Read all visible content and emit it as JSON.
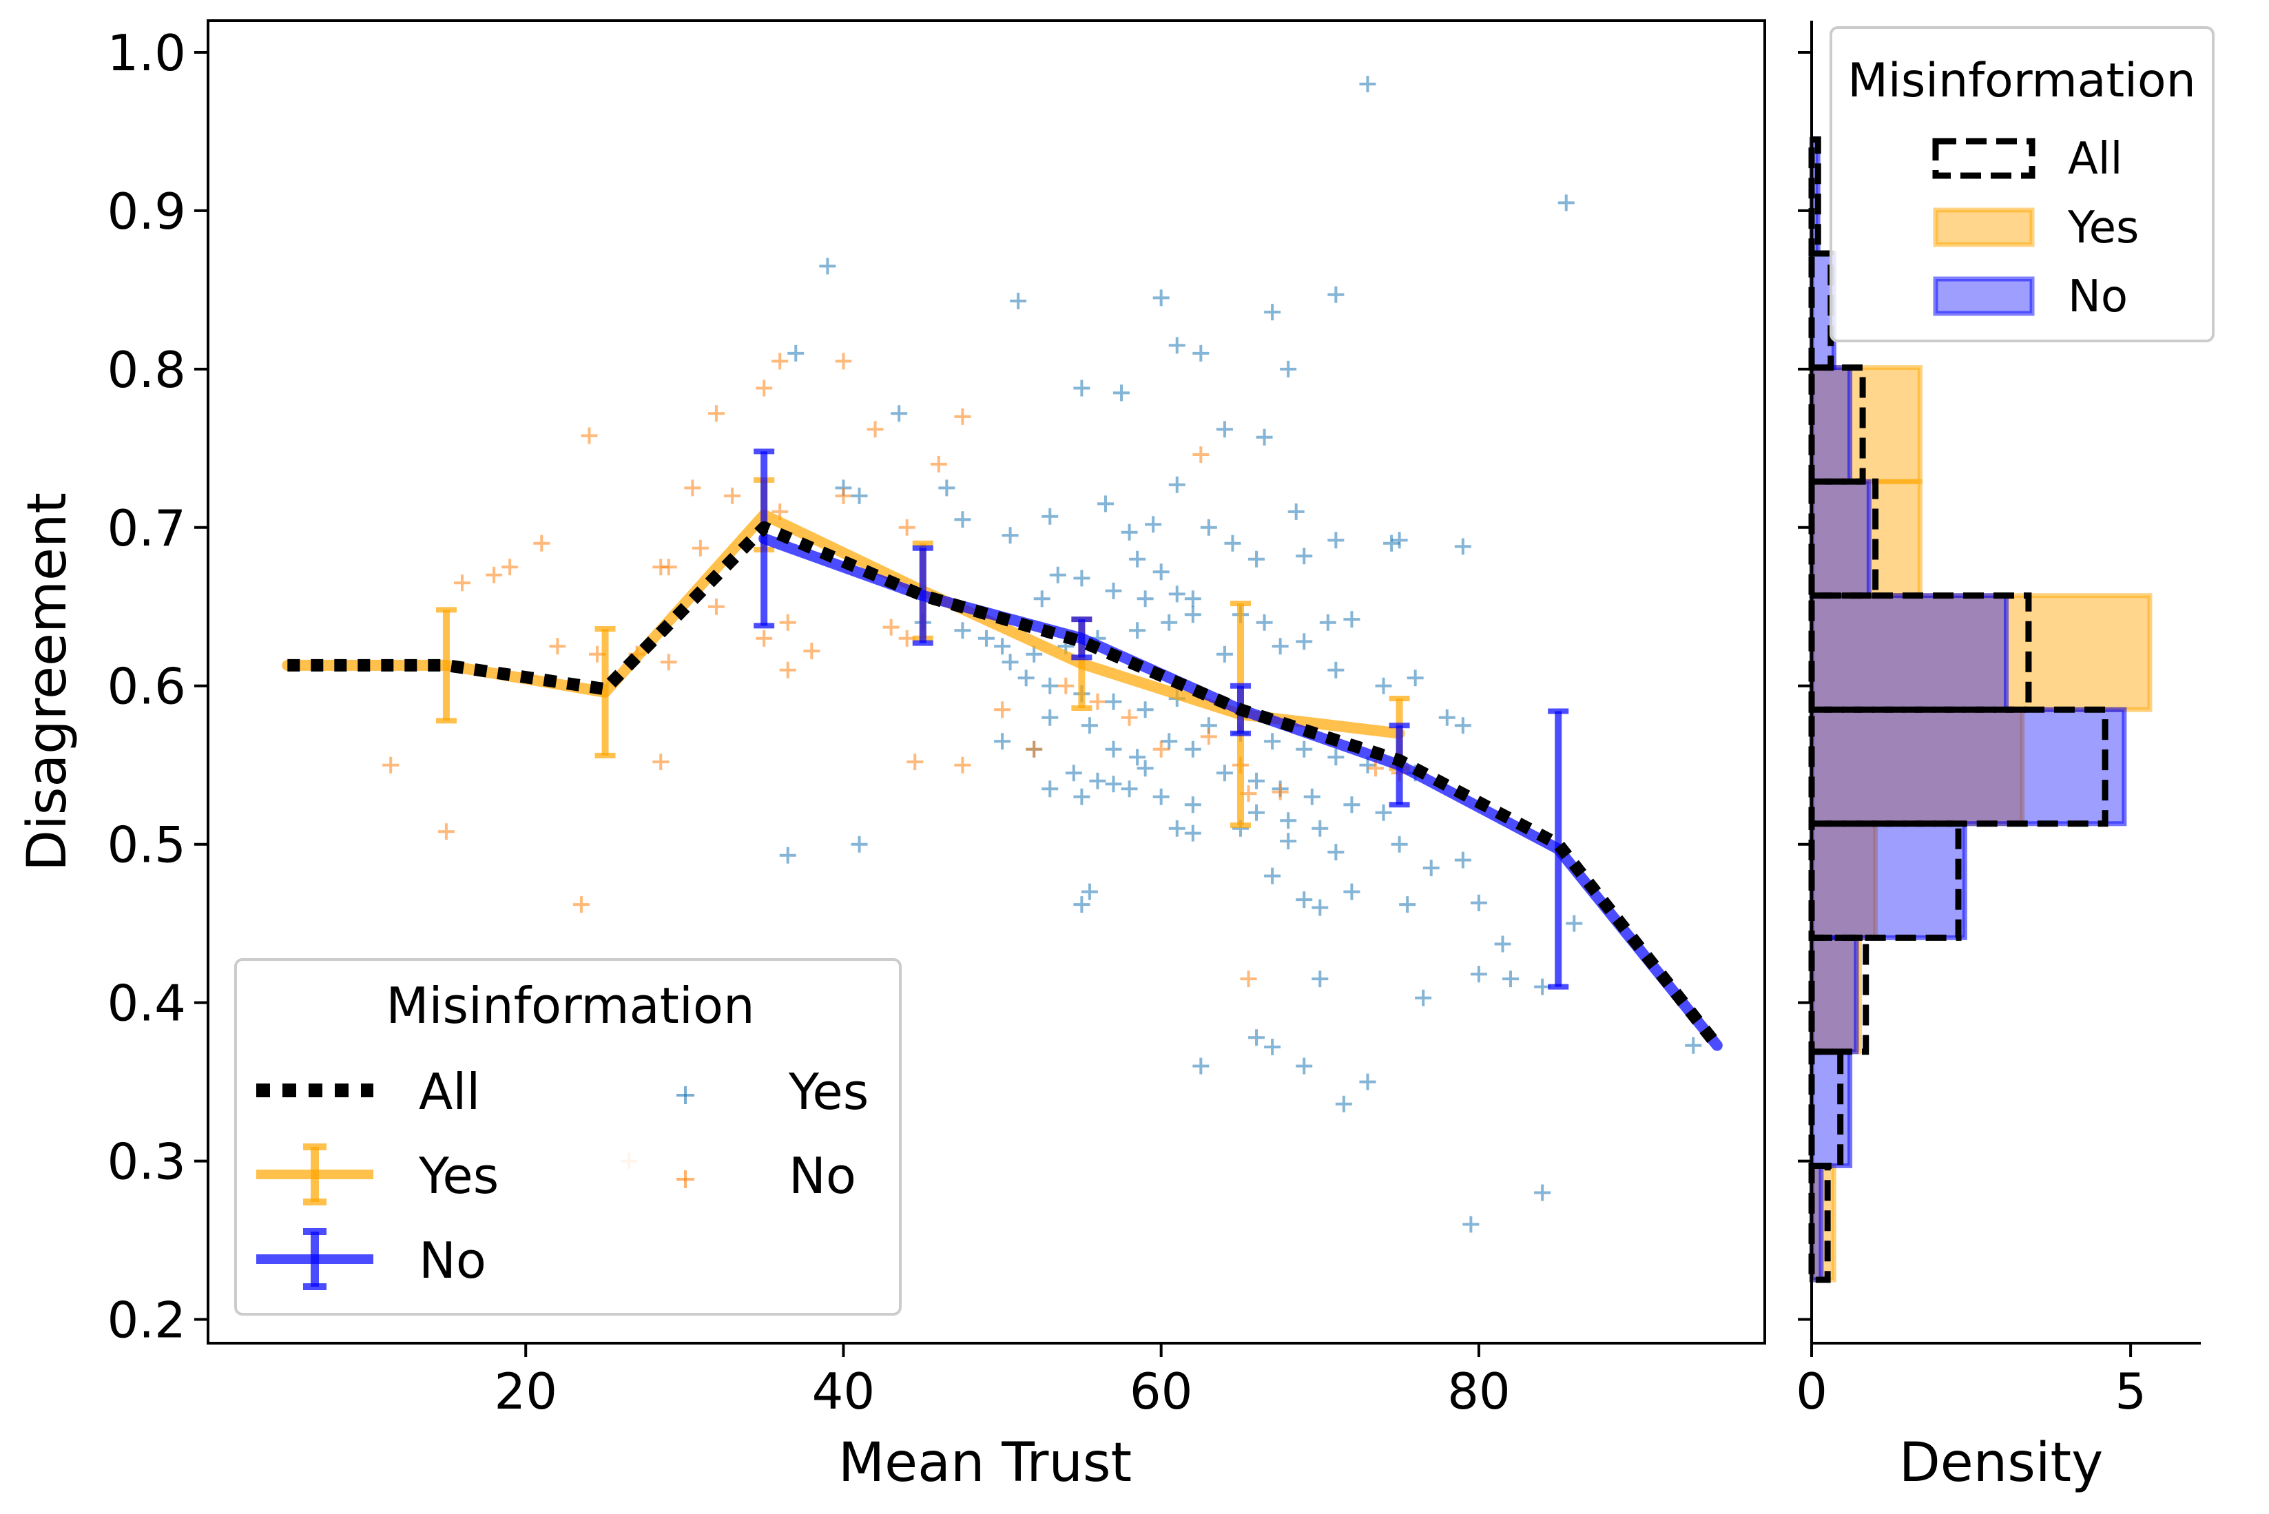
{
  "chart_data": [
    {
      "type": "line",
      "panel": "main",
      "xlabel": "Mean Trust",
      "ylabel": "Disagreement",
      "xlim": [
        0,
        98
      ],
      "ylim": [
        0.185,
        1.02
      ],
      "xticks": [
        20,
        40,
        60,
        80
      ],
      "yticks": [
        0.2,
        0.3,
        0.4,
        0.5,
        0.6,
        0.7,
        0.8,
        0.9,
        1.0
      ],
      "xtick_labels": [
        "20",
        "40",
        "60",
        "80"
      ],
      "ytick_labels": [
        "0.2",
        "0.3",
        "0.4",
        "0.5",
        "0.6",
        "0.7",
        "0.8",
        "0.9",
        "1.0"
      ],
      "colors": {
        "all": "#000000",
        "yes": "#ffa500",
        "no": "#0000ff",
        "scatter_yes": "#1f77b4",
        "scatter_no": "#ff7f0e"
      },
      "series": [
        {
          "name": "All",
          "style": "dotted",
          "x": [
            5,
            15,
            25,
            35,
            45,
            55,
            65,
            75,
            85,
            95
          ],
          "y": [
            0.613,
            0.613,
            0.598,
            0.7,
            0.657,
            0.628,
            0.585,
            0.553,
            0.5,
            0.373
          ]
        },
        {
          "name": "Yes",
          "style": "solid",
          "errorbars": true,
          "x": [
            5,
            15,
            25,
            35,
            45,
            55,
            65,
            75
          ],
          "y": [
            0.613,
            0.613,
            0.596,
            0.708,
            0.66,
            0.614,
            0.582,
            0.57
          ],
          "err": [
            0.0,
            0.035,
            0.04,
            0.022,
            0.03,
            0.028,
            0.07,
            0.022
          ]
        },
        {
          "name": "No",
          "style": "solid",
          "errorbars": true,
          "x": [
            35,
            45,
            55,
            65,
            75,
            85,
            95
          ],
          "y": [
            0.693,
            0.657,
            0.63,
            0.585,
            0.55,
            0.497,
            0.373
          ],
          "err": [
            0.055,
            0.03,
            0.012,
            0.015,
            0.025,
            0.087,
            0.0
          ]
        }
      ],
      "scatter": [
        {
          "name": "Yes",
          "marker": "+",
          "points": [
            [
              73,
              0.98
            ],
            [
              85.5,
              0.905
            ],
            [
              39,
              0.865
            ],
            [
              51,
              0.843
            ],
            [
              60,
              0.845
            ],
            [
              71,
              0.847
            ],
            [
              67,
              0.836
            ],
            [
              61,
              0.815
            ],
            [
              62.5,
              0.81
            ],
            [
              37,
              0.81
            ],
            [
              68,
              0.8
            ],
            [
              55,
              0.788
            ],
            [
              57.5,
              0.785
            ],
            [
              43.5,
              0.772
            ],
            [
              64,
              0.762
            ],
            [
              66.5,
              0.757
            ],
            [
              40,
              0.725
            ],
            [
              41,
              0.72
            ],
            [
              46.5,
              0.725
            ],
            [
              61,
              0.727
            ],
            [
              47.5,
              0.705
            ],
            [
              53,
              0.707
            ],
            [
              56.5,
              0.715
            ],
            [
              58,
              0.697
            ],
            [
              59.5,
              0.702
            ],
            [
              63,
              0.7
            ],
            [
              68.5,
              0.71
            ],
            [
              50.5,
              0.695
            ],
            [
              64.5,
              0.69
            ],
            [
              66,
              0.68
            ],
            [
              69,
              0.682
            ],
            [
              71,
              0.692
            ],
            [
              74.5,
              0.69
            ],
            [
              75,
              0.692
            ],
            [
              79,
              0.688
            ],
            [
              58.5,
              0.68
            ],
            [
              60,
              0.672
            ],
            [
              57,
              0.66
            ],
            [
              59,
              0.655
            ],
            [
              61,
              0.658
            ],
            [
              62,
              0.655
            ],
            [
              53.5,
              0.67
            ],
            [
              55,
              0.668
            ],
            [
              52.5,
              0.655
            ],
            [
              65,
              0.645
            ],
            [
              66.5,
              0.64
            ],
            [
              70.5,
              0.64
            ],
            [
              72,
              0.642
            ],
            [
              45,
              0.64
            ],
            [
              47.5,
              0.635
            ],
            [
              49,
              0.63
            ],
            [
              50,
              0.625
            ],
            [
              52,
              0.62
            ],
            [
              54,
              0.625
            ],
            [
              56,
              0.63
            ],
            [
              58.5,
              0.635
            ],
            [
              60.5,
              0.64
            ],
            [
              62,
              0.645
            ],
            [
              64,
              0.62
            ],
            [
              67.5,
              0.625
            ],
            [
              69,
              0.628
            ],
            [
              71,
              0.61
            ],
            [
              74,
              0.6
            ],
            [
              76,
              0.605
            ],
            [
              50.5,
              0.615
            ],
            [
              51.5,
              0.605
            ],
            [
              53,
              0.6
            ],
            [
              55,
              0.595
            ],
            [
              57,
              0.59
            ],
            [
              59,
              0.585
            ],
            [
              61,
              0.592
            ],
            [
              63,
              0.575
            ],
            [
              65,
              0.57
            ],
            [
              67,
              0.565
            ],
            [
              69,
              0.56
            ],
            [
              71,
              0.555
            ],
            [
              73,
              0.55
            ],
            [
              76,
              0.545
            ],
            [
              53,
              0.58
            ],
            [
              55.5,
              0.575
            ],
            [
              57,
              0.56
            ],
            [
              58.5,
              0.555
            ],
            [
              60.5,
              0.565
            ],
            [
              62,
              0.56
            ],
            [
              64,
              0.545
            ],
            [
              66,
              0.54
            ],
            [
              67.5,
              0.535
            ],
            [
              69.5,
              0.53
            ],
            [
              72,
              0.525
            ],
            [
              74,
              0.52
            ],
            [
              50,
              0.565
            ],
            [
              52,
              0.56
            ],
            [
              54.5,
              0.545
            ],
            [
              56,
              0.54
            ],
            [
              58,
              0.535
            ],
            [
              60,
              0.53
            ],
            [
              62,
              0.525
            ],
            [
              66,
              0.52
            ],
            [
              68,
              0.515
            ],
            [
              70,
              0.51
            ],
            [
              53,
              0.535
            ],
            [
              55,
              0.53
            ],
            [
              57,
              0.538
            ],
            [
              59,
              0.548
            ],
            [
              61,
              0.51
            ],
            [
              62,
              0.507
            ],
            [
              65,
              0.51
            ],
            [
              68,
              0.502
            ],
            [
              71,
              0.495
            ],
            [
              75,
              0.5
            ],
            [
              77,
              0.485
            ],
            [
              79,
              0.49
            ],
            [
              36.5,
              0.493
            ],
            [
              41,
              0.5
            ],
            [
              55.5,
              0.47
            ],
            [
              55,
              0.462
            ],
            [
              67,
              0.48
            ],
            [
              69,
              0.465
            ],
            [
              70,
              0.46
            ],
            [
              72,
              0.47
            ],
            [
              75.5,
              0.462
            ],
            [
              80,
              0.463
            ],
            [
              81.5,
              0.437
            ],
            [
              70,
              0.415
            ],
            [
              80,
              0.418
            ],
            [
              82,
              0.415
            ],
            [
              76.5,
              0.403
            ],
            [
              84,
              0.41
            ],
            [
              86,
              0.45
            ],
            [
              93.5,
              0.373
            ],
            [
              62.5,
              0.36
            ],
            [
              66,
              0.378
            ],
            [
              67,
              0.372
            ],
            [
              69,
              0.36
            ],
            [
              73,
              0.35
            ],
            [
              71.5,
              0.336
            ],
            [
              84,
              0.28
            ],
            [
              79.5,
              0.26
            ],
            [
              78,
              0.58
            ],
            [
              79,
              0.575
            ]
          ]
        },
        {
          "name": "No",
          "marker": "+",
          "points": [
            [
              36,
              0.805
            ],
            [
              35,
              0.788
            ],
            [
              40,
              0.805
            ],
            [
              47.5,
              0.77
            ],
            [
              32,
              0.772
            ],
            [
              24,
              0.758
            ],
            [
              42,
              0.762
            ],
            [
              46,
              0.74
            ],
            [
              62.5,
              0.746
            ],
            [
              30.5,
              0.725
            ],
            [
              33,
              0.72
            ],
            [
              36,
              0.71
            ],
            [
              40,
              0.72
            ],
            [
              44,
              0.7
            ],
            [
              21,
              0.69
            ],
            [
              19,
              0.675
            ],
            [
              18,
              0.67
            ],
            [
              16,
              0.665
            ],
            [
              29,
              0.675
            ],
            [
              28.5,
              0.675
            ],
            [
              31,
              0.687
            ],
            [
              32,
              0.65
            ],
            [
              35,
              0.63
            ],
            [
              36.5,
              0.61
            ],
            [
              43,
              0.637
            ],
            [
              44,
              0.63
            ],
            [
              29,
              0.615
            ],
            [
              27,
              0.62
            ],
            [
              22,
              0.625
            ],
            [
              24.5,
              0.62
            ],
            [
              38,
              0.622
            ],
            [
              36.5,
              0.64
            ],
            [
              50,
              0.585
            ],
            [
              52,
              0.56
            ],
            [
              44.5,
              0.552
            ],
            [
              47.5,
              0.55
            ],
            [
              11.5,
              0.55
            ],
            [
              28.5,
              0.552
            ],
            [
              15,
              0.508
            ],
            [
              23.5,
              0.462
            ],
            [
              65.5,
              0.532
            ],
            [
              67.5,
              0.533
            ],
            [
              65.5,
              0.415
            ],
            [
              63,
              0.568
            ],
            [
              65,
              0.55
            ],
            [
              73.5,
              0.548
            ],
            [
              75,
              0.545
            ],
            [
              26.5,
              0.3
            ],
            [
              60,
              0.56
            ],
            [
              54,
              0.6
            ],
            [
              56,
              0.59
            ],
            [
              58,
              0.58
            ]
          ]
        }
      ],
      "legend": {
        "title": "Misinformation",
        "position": "lower-left",
        "col1": [
          "All",
          "Yes",
          "No"
        ],
        "col2": [
          "Yes",
          "No"
        ]
      }
    },
    {
      "type": "histogram",
      "panel": "side",
      "orientation": "horizontal",
      "xlabel": "Density",
      "xlim": [
        0,
        6.1
      ],
      "xticks": [
        0,
        5
      ],
      "xtick_labels": [
        "0",
        "5"
      ],
      "bins": [
        0.225,
        0.297,
        0.369,
        0.441,
        0.513,
        0.585,
        0.657,
        0.729,
        0.801,
        0.873,
        0.945
      ],
      "series": [
        {
          "name": "All",
          "style": "dashed",
          "values": [
            0.25,
            0.45,
            0.85,
            2.3,
            4.6,
            3.4,
            1.0,
            0.8,
            0.3,
            0.1
          ]
        },
        {
          "name": "Yes",
          "color": "#ffa500",
          "values": [
            0.35,
            0.0,
            0.75,
            1.0,
            3.3,
            5.3,
            1.7,
            1.7,
            0.0,
            0.0
          ]
        },
        {
          "name": "No",
          "color": "#0000ff",
          "values": [
            0.15,
            0.6,
            0.7,
            2.4,
            4.9,
            3.05,
            0.9,
            0.6,
            0.35,
            0.1
          ]
        }
      ],
      "legend": {
        "title": "Misinformation",
        "position": "top-right",
        "items": [
          "All",
          "Yes",
          "No"
        ]
      }
    }
  ]
}
